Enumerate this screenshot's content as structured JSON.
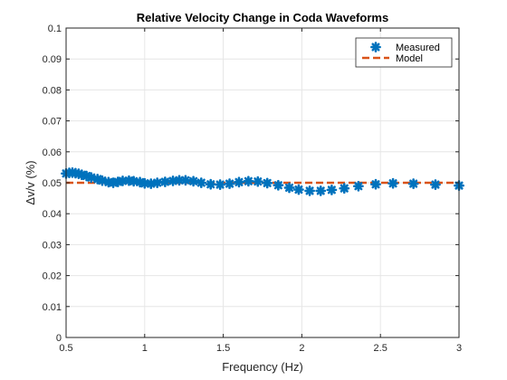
{
  "chart_data": {
    "type": "line",
    "title": "Relative Velocity Change in Coda Waveforms",
    "xlabel": "Frequency (Hz)",
    "ylabel": "Δv/v  (%)",
    "xlim": [
      0.5,
      3
    ],
    "ylim": [
      0,
      0.1
    ],
    "xticks": [
      0.5,
      1,
      1.5,
      2,
      2.5,
      3
    ],
    "xtick_labels": [
      "0.5",
      "1",
      "1.5",
      "2",
      "2.5",
      "3"
    ],
    "yticks": [
      0,
      0.01,
      0.02,
      0.03,
      0.04,
      0.05,
      0.06,
      0.07,
      0.08,
      0.09,
      0.1
    ],
    "ytick_labels": [
      "0",
      "0.01",
      "0.02",
      "0.03",
      "0.04",
      "0.05",
      "0.06",
      "0.07",
      "0.08",
      "0.09",
      "0.1"
    ],
    "grid": true,
    "legend_position": "top-right",
    "series": [
      {
        "name": "Measured",
        "style": "asterisk-markers",
        "color": "#0072BD",
        "x": [
          0.5,
          0.52,
          0.54,
          0.56,
          0.58,
          0.6,
          0.63,
          0.66,
          0.7,
          0.73,
          0.77,
          0.8,
          0.83,
          0.86,
          0.9,
          0.93,
          0.97,
          1.0,
          1.04,
          1.08,
          1.13,
          1.18,
          1.22,
          1.26,
          1.31,
          1.36,
          1.42,
          1.48,
          1.54,
          1.6,
          1.66,
          1.72,
          1.78,
          1.85,
          1.92,
          1.98,
          2.05,
          2.12,
          2.19,
          2.27,
          2.36,
          2.47,
          2.58,
          2.71,
          2.85,
          3.0
        ],
        "y": [
          0.053,
          0.0532,
          0.0533,
          0.0531,
          0.0529,
          0.0526,
          0.0522,
          0.0517,
          0.0512,
          0.0507,
          0.0502,
          0.05,
          0.0503,
          0.0506,
          0.0507,
          0.0505,
          0.0502,
          0.0498,
          0.0497,
          0.05,
          0.0503,
          0.0506,
          0.0508,
          0.0508,
          0.0505,
          0.05,
          0.0495,
          0.0494,
          0.0497,
          0.0502,
          0.0505,
          0.0504,
          0.0499,
          0.0492,
          0.0484,
          0.0478,
          0.0474,
          0.0474,
          0.0477,
          0.0482,
          0.0489,
          0.0495,
          0.0498,
          0.0497,
          0.0494,
          0.0491
        ]
      },
      {
        "name": "Model",
        "style": "dashed-line",
        "color": "#D95319",
        "x": [
          0.5,
          3
        ],
        "y": [
          0.05,
          0.05
        ]
      }
    ]
  }
}
